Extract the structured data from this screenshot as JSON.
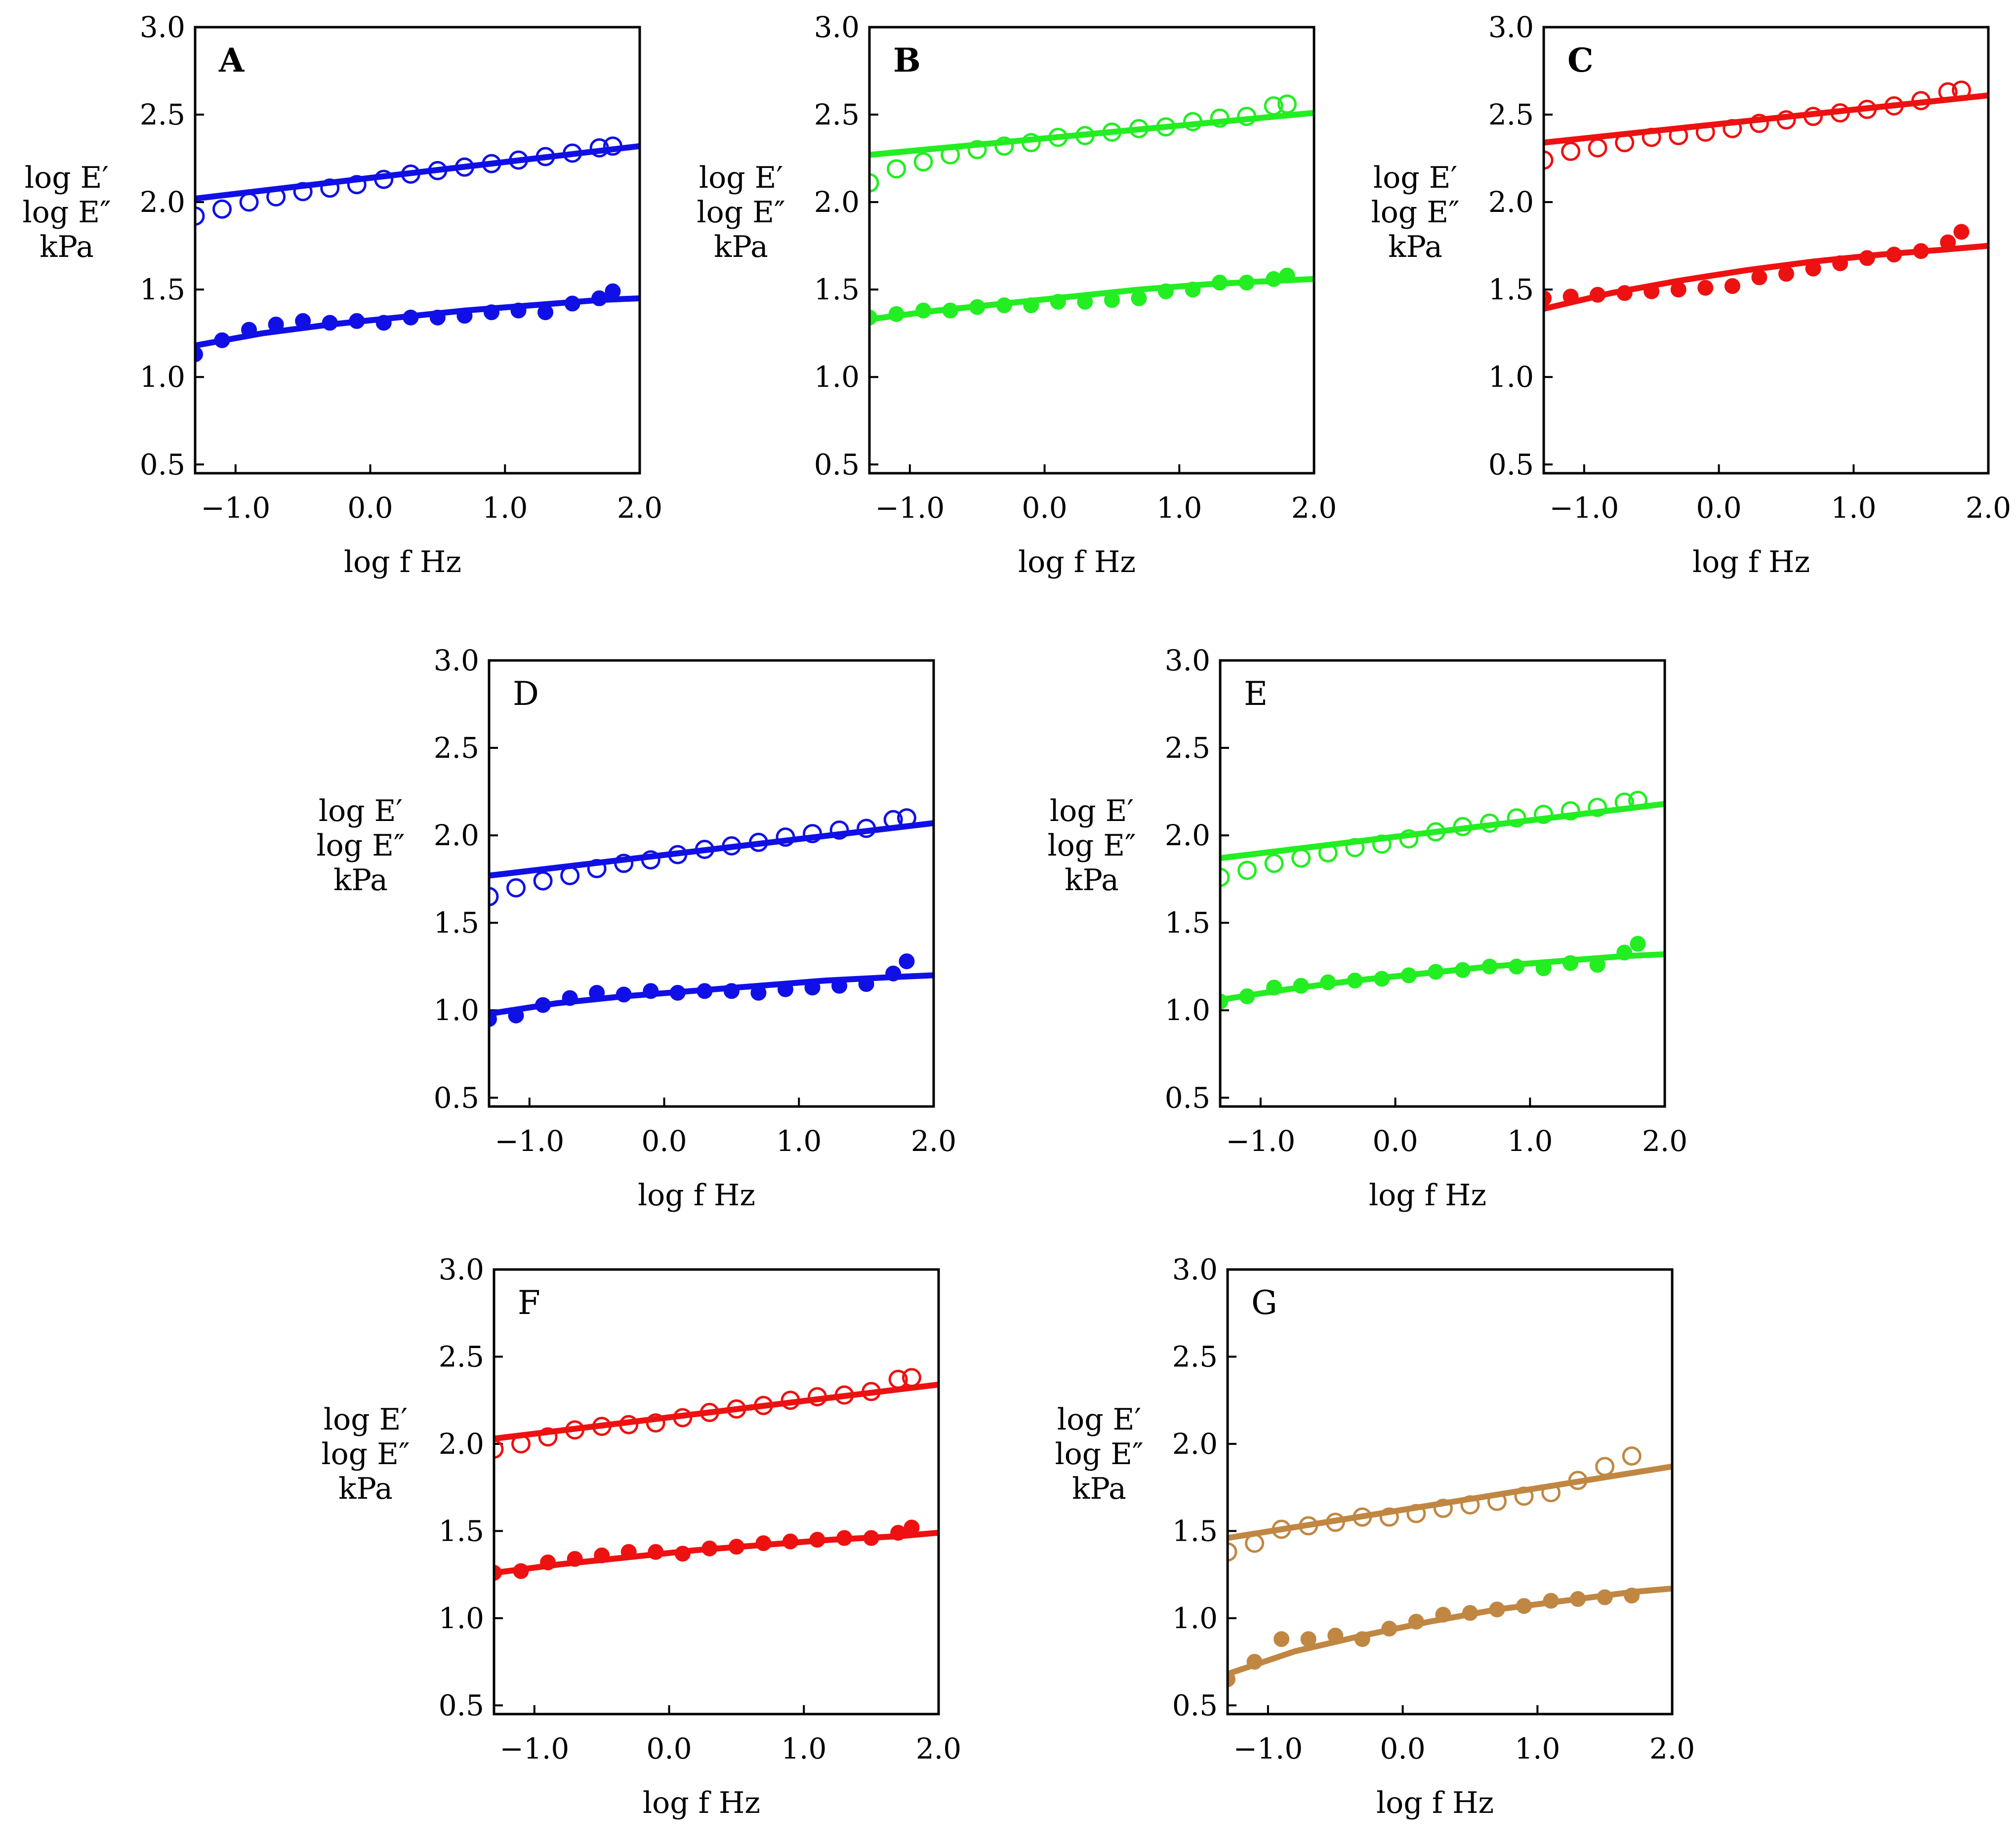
{
  "chart_data": [
    {
      "panel": "A",
      "color": "#1010e6",
      "label_bold": true,
      "type": "scatter",
      "xlabel": "log f   Hz",
      "ylabel_lines": [
        "log E′",
        "log E″",
        "kPa"
      ],
      "xlim": [
        -1.3,
        2.0
      ],
      "ylim": [
        0.45,
        3.0
      ],
      "xticks": [
        -1.0,
        0.0,
        1.0,
        2.0
      ],
      "xtick_labels": [
        "−1.0",
        "0.0",
        "1.0",
        "2.0"
      ],
      "yticks": [
        0.5,
        1.0,
        1.5,
        2.0,
        2.5,
        3.0
      ],
      "ytick_labels": [
        "0.5",
        "1.0",
        "1.5",
        "2.0",
        "2.5",
        "3.0"
      ],
      "series": [
        {
          "name": "E′ data",
          "marker": "open",
          "x": [
            -1.3,
            -1.1,
            -0.9,
            -0.7,
            -0.5,
            -0.3,
            -0.1,
            0.1,
            0.3,
            0.5,
            0.7,
            0.9,
            1.1,
            1.3,
            1.5,
            1.7,
            1.8
          ],
          "y": [
            1.92,
            1.96,
            2.0,
            2.03,
            2.06,
            2.08,
            2.1,
            2.13,
            2.16,
            2.18,
            2.2,
            2.22,
            2.24,
            2.26,
            2.28,
            2.31,
            2.32
          ]
        },
        {
          "name": "E″ data",
          "marker": "filled",
          "x": [
            -1.3,
            -1.1,
            -0.9,
            -0.7,
            -0.5,
            -0.3,
            -0.1,
            0.1,
            0.3,
            0.5,
            0.7,
            0.9,
            1.1,
            1.3,
            1.5,
            1.7,
            1.8
          ],
          "y": [
            1.13,
            1.21,
            1.27,
            1.3,
            1.32,
            1.31,
            1.32,
            1.31,
            1.34,
            1.34,
            1.35,
            1.37,
            1.38,
            1.37,
            1.42,
            1.45,
            1.49
          ]
        },
        {
          "name": "E′ fit",
          "line": true,
          "x": [
            -1.3,
            2.0
          ],
          "y": [
            2.02,
            2.32
          ]
        },
        {
          "name": "E″ fit",
          "line": true,
          "x": [
            -1.3,
            -0.8,
            -0.3,
            0.2,
            0.7,
            1.2,
            1.7,
            2.0
          ],
          "y": [
            1.18,
            1.25,
            1.3,
            1.34,
            1.38,
            1.41,
            1.44,
            1.45
          ]
        }
      ]
    },
    {
      "panel": "B",
      "color": "#22ee22",
      "label_bold": true,
      "type": "scatter",
      "xlabel": "log f   Hz",
      "ylabel_lines": [
        "log E′",
        "log E″",
        "kPa"
      ],
      "xlim": [
        -1.3,
        2.0
      ],
      "ylim": [
        0.45,
        3.0
      ],
      "xticks": [
        -1.0,
        0.0,
        1.0,
        2.0
      ],
      "xtick_labels": [
        "−1.0",
        "0.0",
        "1.0",
        "2.0"
      ],
      "yticks": [
        0.5,
        1.0,
        1.5,
        2.0,
        2.5,
        3.0
      ],
      "ytick_labels": [
        "0.5",
        "1.0",
        "1.5",
        "2.0",
        "2.5",
        "3.0"
      ],
      "series": [
        {
          "name": "E′ data",
          "marker": "open",
          "x": [
            -1.3,
            -1.1,
            -0.9,
            -0.7,
            -0.5,
            -0.3,
            -0.1,
            0.1,
            0.3,
            0.5,
            0.7,
            0.9,
            1.1,
            1.3,
            1.5,
            1.7,
            1.8
          ],
          "y": [
            2.11,
            2.19,
            2.23,
            2.27,
            2.3,
            2.32,
            2.34,
            2.37,
            2.38,
            2.4,
            2.42,
            2.43,
            2.46,
            2.48,
            2.49,
            2.55,
            2.56
          ]
        },
        {
          "name": "E″ data",
          "marker": "filled",
          "x": [
            -1.3,
            -1.1,
            -0.9,
            -0.7,
            -0.5,
            -0.3,
            -0.1,
            0.1,
            0.3,
            0.5,
            0.7,
            0.9,
            1.1,
            1.3,
            1.5,
            1.7,
            1.8
          ],
          "y": [
            1.34,
            1.36,
            1.38,
            1.38,
            1.4,
            1.41,
            1.41,
            1.43,
            1.43,
            1.44,
            1.45,
            1.49,
            1.5,
            1.54,
            1.54,
            1.56,
            1.58
          ]
        },
        {
          "name": "E′ fit",
          "line": true,
          "x": [
            -1.3,
            2.0
          ],
          "y": [
            2.27,
            2.51
          ]
        },
        {
          "name": "E″ fit",
          "line": true,
          "x": [
            -1.3,
            -0.8,
            -0.3,
            0.2,
            0.7,
            1.2,
            1.7,
            2.0
          ],
          "y": [
            1.33,
            1.38,
            1.42,
            1.46,
            1.5,
            1.53,
            1.55,
            1.56
          ]
        }
      ]
    },
    {
      "panel": "C",
      "color": "#ee1111",
      "label_bold": true,
      "type": "scatter",
      "xlabel": "log f   Hz",
      "ylabel_lines": [
        "log E′",
        "log E″",
        "kPa"
      ],
      "xlim": [
        -1.3,
        2.0
      ],
      "ylim": [
        0.45,
        3.0
      ],
      "xticks": [
        -1.0,
        0.0,
        1.0,
        2.0
      ],
      "xtick_labels": [
        "−1.0",
        "0.0",
        "1.0",
        "2.0"
      ],
      "yticks": [
        0.5,
        1.0,
        1.5,
        2.0,
        2.5,
        3.0
      ],
      "ytick_labels": [
        "0.5",
        "1.0",
        "1.5",
        "2.0",
        "2.5",
        "3.0"
      ],
      "series": [
        {
          "name": "E′ data",
          "marker": "open",
          "x": [
            -1.3,
            -1.1,
            -0.9,
            -0.7,
            -0.5,
            -0.3,
            -0.1,
            0.1,
            0.3,
            0.5,
            0.7,
            0.9,
            1.1,
            1.3,
            1.5,
            1.7,
            1.8
          ],
          "y": [
            2.24,
            2.29,
            2.31,
            2.34,
            2.37,
            2.38,
            2.4,
            2.42,
            2.45,
            2.47,
            2.49,
            2.51,
            2.53,
            2.55,
            2.58,
            2.63,
            2.64
          ]
        },
        {
          "name": "E″ data",
          "marker": "filled",
          "x": [
            -1.3,
            -1.1,
            -0.9,
            -0.7,
            -0.5,
            -0.3,
            -0.1,
            0.1,
            0.3,
            0.5,
            0.7,
            0.9,
            1.1,
            1.3,
            1.5,
            1.7,
            1.8
          ],
          "y": [
            1.45,
            1.46,
            1.47,
            1.48,
            1.49,
            1.5,
            1.51,
            1.52,
            1.57,
            1.59,
            1.62,
            1.65,
            1.68,
            1.7,
            1.72,
            1.77,
            1.83
          ]
        },
        {
          "name": "E′ fit",
          "line": true,
          "x": [
            -1.3,
            2.0
          ],
          "y": [
            2.34,
            2.61
          ]
        },
        {
          "name": "E″ fit",
          "line": true,
          "x": [
            -1.3,
            -0.8,
            -0.3,
            0.2,
            0.7,
            1.2,
            1.7,
            2.0
          ],
          "y": [
            1.39,
            1.48,
            1.55,
            1.61,
            1.66,
            1.7,
            1.73,
            1.75
          ]
        }
      ]
    },
    {
      "panel": "D",
      "color": "#1010e6",
      "label_bold": false,
      "type": "scatter",
      "xlabel": "log f   Hz",
      "ylabel_lines": [
        "log E′",
        "log E″",
        "kPa"
      ],
      "xlim": [
        -1.3,
        2.0
      ],
      "ylim": [
        0.45,
        3.0
      ],
      "xticks": [
        -1.0,
        0.0,
        1.0,
        2.0
      ],
      "xtick_labels": [
        "−1.0",
        "0.0",
        "1.0",
        "2.0"
      ],
      "yticks": [
        0.5,
        1.0,
        1.5,
        2.0,
        2.5,
        3.0
      ],
      "ytick_labels": [
        "0.5",
        "1.0",
        "1.5",
        "2.0",
        "2.5",
        "3.0"
      ],
      "series": [
        {
          "name": "E′ data",
          "marker": "open",
          "x": [
            -1.3,
            -1.1,
            -0.9,
            -0.7,
            -0.5,
            -0.3,
            -0.1,
            0.1,
            0.3,
            0.5,
            0.7,
            0.9,
            1.1,
            1.3,
            1.5,
            1.7,
            1.8
          ],
          "y": [
            1.65,
            1.7,
            1.74,
            1.77,
            1.81,
            1.84,
            1.86,
            1.89,
            1.92,
            1.94,
            1.96,
            1.99,
            2.01,
            2.03,
            2.04,
            2.09,
            2.1
          ]
        },
        {
          "name": "E″ data",
          "marker": "filled",
          "x": [
            -1.3,
            -1.1,
            -0.9,
            -0.7,
            -0.5,
            -0.3,
            -0.1,
            0.1,
            0.3,
            0.5,
            0.7,
            0.9,
            1.1,
            1.3,
            1.5,
            1.7,
            1.8
          ],
          "y": [
            0.95,
            0.97,
            1.03,
            1.07,
            1.1,
            1.09,
            1.11,
            1.1,
            1.11,
            1.11,
            1.1,
            1.12,
            1.13,
            1.14,
            1.15,
            1.21,
            1.28
          ]
        },
        {
          "name": "E′ fit",
          "line": true,
          "x": [
            -1.3,
            2.0
          ],
          "y": [
            1.77,
            2.07
          ]
        },
        {
          "name": "E″ fit",
          "line": true,
          "x": [
            -1.3,
            -0.8,
            -0.3,
            0.2,
            0.7,
            1.2,
            1.7,
            2.0
          ],
          "y": [
            0.98,
            1.04,
            1.08,
            1.11,
            1.14,
            1.17,
            1.19,
            1.2
          ]
        }
      ]
    },
    {
      "panel": "E",
      "color": "#22ee22",
      "label_bold": false,
      "type": "scatter",
      "xlabel": "log f   Hz",
      "ylabel_lines": [
        "log E′",
        "log E″",
        "kPa"
      ],
      "xlim": [
        -1.3,
        2.0
      ],
      "ylim": [
        0.45,
        3.0
      ],
      "xticks": [
        -1.0,
        0.0,
        1.0,
        2.0
      ],
      "xtick_labels": [
        "−1.0",
        "0.0",
        "1.0",
        "2.0"
      ],
      "yticks": [
        0.5,
        1.0,
        1.5,
        2.0,
        2.5,
        3.0
      ],
      "ytick_labels": [
        "0.5",
        "1.0",
        "1.5",
        "2.0",
        "2.5",
        "3.0"
      ],
      "series": [
        {
          "name": "E′ data",
          "marker": "open",
          "x": [
            -1.3,
            -1.1,
            -0.9,
            -0.7,
            -0.5,
            -0.3,
            -0.1,
            0.1,
            0.3,
            0.5,
            0.7,
            0.9,
            1.1,
            1.3,
            1.5,
            1.7,
            1.8
          ],
          "y": [
            1.76,
            1.8,
            1.84,
            1.87,
            1.9,
            1.93,
            1.95,
            1.98,
            2.02,
            2.05,
            2.07,
            2.1,
            2.12,
            2.14,
            2.16,
            2.19,
            2.2
          ]
        },
        {
          "name": "E″ data",
          "marker": "filled",
          "x": [
            -1.3,
            -1.1,
            -0.9,
            -0.7,
            -0.5,
            -0.3,
            -0.1,
            0.1,
            0.3,
            0.5,
            0.7,
            0.9,
            1.1,
            1.3,
            1.5,
            1.7,
            1.8
          ],
          "y": [
            1.05,
            1.08,
            1.13,
            1.14,
            1.16,
            1.17,
            1.18,
            1.2,
            1.22,
            1.23,
            1.25,
            1.25,
            1.24,
            1.27,
            1.26,
            1.33,
            1.38
          ]
        },
        {
          "name": "E′ fit",
          "line": true,
          "x": [
            -1.3,
            2.0
          ],
          "y": [
            1.87,
            2.18
          ]
        },
        {
          "name": "E″ fit",
          "line": true,
          "x": [
            -1.3,
            -0.8,
            -0.3,
            0.2,
            0.7,
            1.2,
            1.7,
            2.0
          ],
          "y": [
            1.06,
            1.12,
            1.17,
            1.21,
            1.25,
            1.28,
            1.31,
            1.32
          ]
        }
      ]
    },
    {
      "panel": "F",
      "color": "#ee1111",
      "label_bold": false,
      "type": "scatter",
      "xlabel": "log f   Hz",
      "ylabel_lines": [
        "log E′",
        "log E″",
        "kPa"
      ],
      "xlim": [
        -1.3,
        2.0
      ],
      "ylim": [
        0.45,
        3.0
      ],
      "xticks": [
        -1.0,
        0.0,
        1.0,
        2.0
      ],
      "xtick_labels": [
        "−1.0",
        "0.0",
        "1.0",
        "2.0"
      ],
      "yticks": [
        0.5,
        1.0,
        1.5,
        2.0,
        2.5,
        3.0
      ],
      "ytick_labels": [
        "0.5",
        "1.0",
        "1.5",
        "2.0",
        "2.5",
        "3.0"
      ],
      "series": [
        {
          "name": "E′ data",
          "marker": "open",
          "x": [
            -1.3,
            -1.1,
            -0.9,
            -0.7,
            -0.5,
            -0.3,
            -0.1,
            0.1,
            0.3,
            0.5,
            0.7,
            0.9,
            1.1,
            1.3,
            1.5,
            1.7,
            1.8
          ],
          "y": [
            1.97,
            2.0,
            2.04,
            2.08,
            2.1,
            2.11,
            2.12,
            2.15,
            2.18,
            2.2,
            2.22,
            2.25,
            2.27,
            2.28,
            2.3,
            2.37,
            2.38
          ]
        },
        {
          "name": "E″ data",
          "marker": "filled",
          "x": [
            -1.3,
            -1.1,
            -0.9,
            -0.7,
            -0.5,
            -0.3,
            -0.1,
            0.1,
            0.3,
            0.5,
            0.7,
            0.9,
            1.1,
            1.3,
            1.5,
            1.7,
            1.8
          ],
          "y": [
            1.26,
            1.27,
            1.32,
            1.34,
            1.36,
            1.38,
            1.38,
            1.37,
            1.4,
            1.41,
            1.43,
            1.44,
            1.45,
            1.46,
            1.46,
            1.49,
            1.52
          ]
        },
        {
          "name": "E′ fit",
          "line": true,
          "x": [
            -1.3,
            2.0
          ],
          "y": [
            2.03,
            2.34
          ]
        },
        {
          "name": "E″ fit",
          "line": true,
          "x": [
            -1.3,
            -0.8,
            -0.3,
            0.2,
            0.7,
            1.2,
            1.7,
            2.0
          ],
          "y": [
            1.26,
            1.31,
            1.35,
            1.39,
            1.42,
            1.45,
            1.47,
            1.49
          ]
        }
      ]
    },
    {
      "panel": "G",
      "color": "#c08743",
      "label_bold": false,
      "type": "scatter",
      "xlabel": "log f   Hz",
      "ylabel_lines": [
        "log E′",
        "log E″",
        "kPa"
      ],
      "xlim": [
        -1.3,
        2.0
      ],
      "ylim": [
        0.45,
        3.0
      ],
      "xticks": [
        -1.0,
        0.0,
        1.0,
        2.0
      ],
      "xtick_labels": [
        "−1.0",
        "0.0",
        "1.0",
        "2.0"
      ],
      "yticks": [
        0.5,
        1.0,
        1.5,
        2.0,
        2.5,
        3.0
      ],
      "ytick_labels": [
        "0.5",
        "1.0",
        "1.5",
        "2.0",
        "2.5",
        "3.0"
      ],
      "series": [
        {
          "name": "E′ data",
          "marker": "open",
          "x": [
            -1.3,
            -1.1,
            -0.9,
            -0.7,
            -0.5,
            -0.3,
            -0.1,
            0.1,
            0.3,
            0.5,
            0.7,
            0.9,
            1.1,
            1.3,
            1.5,
            1.7
          ],
          "y": [
            1.38,
            1.43,
            1.51,
            1.53,
            1.55,
            1.58,
            1.58,
            1.6,
            1.63,
            1.65,
            1.67,
            1.7,
            1.72,
            1.79,
            1.87,
            1.93
          ]
        },
        {
          "name": "E″ data",
          "marker": "filled",
          "x": [
            -1.3,
            -1.1,
            -0.9,
            -0.7,
            -0.5,
            -0.3,
            -0.1,
            0.1,
            0.3,
            0.5,
            0.7,
            0.9,
            1.1,
            1.3,
            1.5,
            1.7
          ],
          "y": [
            0.65,
            0.75,
            0.88,
            0.88,
            0.9,
            0.88,
            0.94,
            0.98,
            1.02,
            1.03,
            1.05,
            1.07,
            1.1,
            1.11,
            1.12,
            1.13
          ]
        },
        {
          "name": "E′ fit",
          "line": true,
          "x": [
            -1.3,
            2.0
          ],
          "y": [
            1.46,
            1.87
          ]
        },
        {
          "name": "E″ fit",
          "line": true,
          "x": [
            -1.3,
            -0.8,
            -0.3,
            0.2,
            0.7,
            1.2,
            1.7,
            2.0
          ],
          "y": [
            0.68,
            0.81,
            0.9,
            0.98,
            1.05,
            1.1,
            1.15,
            1.17
          ]
        }
      ]
    }
  ]
}
